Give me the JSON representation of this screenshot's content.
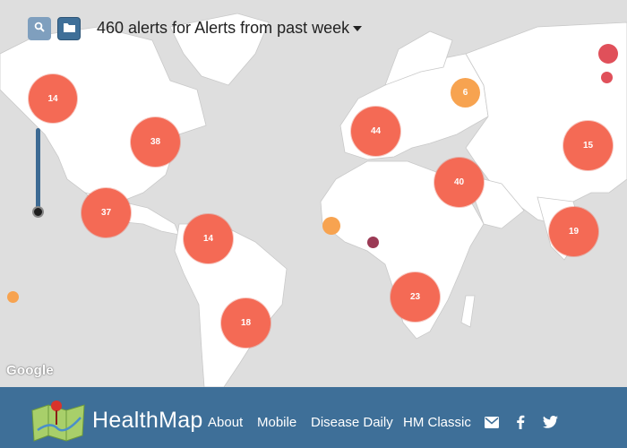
{
  "header": {
    "title": "460 alerts for Alerts from past week",
    "search_icon": "search-icon",
    "folder_icon": "folder-icon"
  },
  "map": {
    "attribution": "Google",
    "clusters": [
      {
        "id": "northwest-us",
        "count": "14",
        "kind": "red"
      },
      {
        "id": "eastern-us",
        "count": "38",
        "kind": "red"
      },
      {
        "id": "mexico",
        "count": "37",
        "kind": "red"
      },
      {
        "id": "venezuela",
        "count": "14",
        "kind": "red"
      },
      {
        "id": "brazil",
        "count": "18",
        "kind": "red"
      },
      {
        "id": "europe",
        "count": "44",
        "kind": "red"
      },
      {
        "id": "russia",
        "count": "6",
        "kind": "orange"
      },
      {
        "id": "middle-east",
        "count": "40",
        "kind": "red"
      },
      {
        "id": "southern-africa",
        "count": "23",
        "kind": "red"
      },
      {
        "id": "india",
        "count": "19",
        "kind": "red"
      },
      {
        "id": "east-asia",
        "count": "15",
        "kind": "red"
      }
    ]
  },
  "footer": {
    "brand": "HealthMap",
    "links": [
      "About",
      "Mobile",
      "Disease Daily",
      "HM Classic"
    ],
    "icons": [
      "email-icon",
      "facebook-icon",
      "twitter-icon"
    ]
  },
  "colors": {
    "cluster_red": "#f46a55",
    "cluster_orange": "#f7a350",
    "footer_blue": "#3e6f98",
    "dot_maroon": "#9b3a55"
  }
}
